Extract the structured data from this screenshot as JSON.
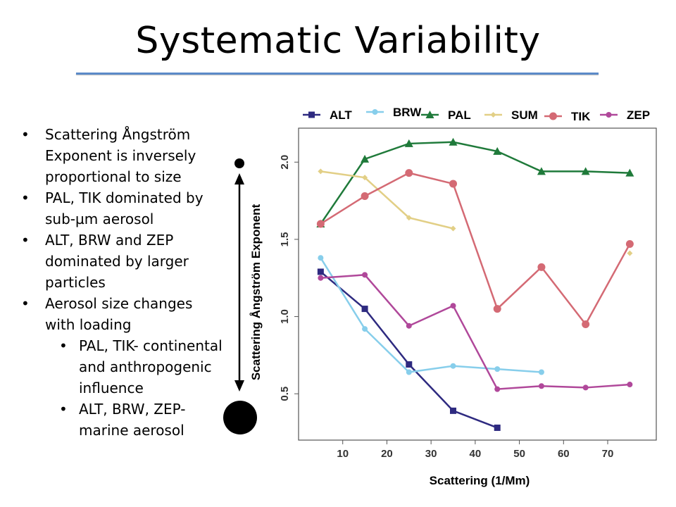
{
  "slide": {
    "title": "Systematic Variability",
    "bullets": [
      {
        "level": 1,
        "text": "Scattering Ångström Exponent is inversely proportional to size"
      },
      {
        "level": 1,
        "text": "PAL, TIK dominated by sub-µm aerosol"
      },
      {
        "level": 1,
        "text": "ALT, BRW and ZEP dominated by larger particles"
      },
      {
        "level": 1,
        "text": "Aerosol size changes with loading"
      },
      {
        "level": 2,
        "text": "PAL, TIK- continental and anthropogenic influence"
      },
      {
        "level": 2,
        "text": "ALT, BRW, ZEP- marine aerosol"
      }
    ]
  },
  "chart_data": {
    "type": "line",
    "title": "",
    "xlabel": "Scattering (1/Mm)",
    "ylabel": "Scattering Ångström Exponent",
    "xlim": [
      0,
      81
    ],
    "ylim": [
      0.2,
      2.22
    ],
    "xticks": [
      10,
      20,
      30,
      40,
      50,
      60,
      70
    ],
    "yticks": [
      0.5,
      1.0,
      1.5,
      2.0
    ],
    "ytick_labels": [
      "0.5",
      "1.0",
      "1.5",
      "2.0"
    ],
    "legend_position": "top",
    "series": [
      {
        "name": "ALT",
        "color": "#2e2a80",
        "marker": "square",
        "points": [
          [
            5,
            1.29
          ],
          [
            15,
            1.05
          ],
          [
            25,
            0.69
          ],
          [
            35,
            0.39
          ],
          [
            45,
            0.28
          ]
        ]
      },
      {
        "name": "BRW",
        "color": "#87ceeb",
        "marker": "circle",
        "points": [
          [
            5,
            1.38
          ],
          [
            15,
            0.92
          ],
          [
            25,
            0.64
          ],
          [
            35,
            0.68
          ],
          [
            45,
            0.66
          ],
          [
            55,
            0.64
          ]
        ]
      },
      {
        "name": "PAL",
        "color": "#1f7a3a",
        "marker": "triangle",
        "points": [
          [
            5,
            1.6
          ],
          [
            15,
            2.02
          ],
          [
            25,
            2.12
          ],
          [
            35,
            2.13
          ],
          [
            45,
            2.07
          ],
          [
            55,
            1.94
          ],
          [
            65,
            1.94
          ],
          [
            75,
            1.93
          ]
        ]
      },
      {
        "name": "SUM",
        "color": "#e2cf86",
        "marker": "diamond",
        "points": [
          [
            5,
            1.94
          ],
          [
            15,
            1.9
          ],
          [
            25,
            1.64
          ],
          [
            35,
            1.57
          ],
          [
            75,
            1.41
          ]
        ]
      },
      {
        "name": "TIK",
        "color": "#d46a74",
        "marker": "circle",
        "points": [
          [
            5,
            1.6
          ],
          [
            15,
            1.78
          ],
          [
            25,
            1.93
          ],
          [
            35,
            1.86
          ],
          [
            45,
            1.05
          ],
          [
            55,
            1.32
          ],
          [
            65,
            0.95
          ],
          [
            75,
            1.47
          ]
        ]
      },
      {
        "name": "ZEP",
        "color": "#b0489a",
        "marker": "circle",
        "points": [
          [
            5,
            1.25
          ],
          [
            15,
            1.27
          ],
          [
            25,
            0.94
          ],
          [
            35,
            1.07
          ],
          [
            45,
            0.53
          ],
          [
            55,
            0.55
          ],
          [
            65,
            0.54
          ],
          [
            75,
            0.56
          ]
        ]
      }
    ]
  }
}
